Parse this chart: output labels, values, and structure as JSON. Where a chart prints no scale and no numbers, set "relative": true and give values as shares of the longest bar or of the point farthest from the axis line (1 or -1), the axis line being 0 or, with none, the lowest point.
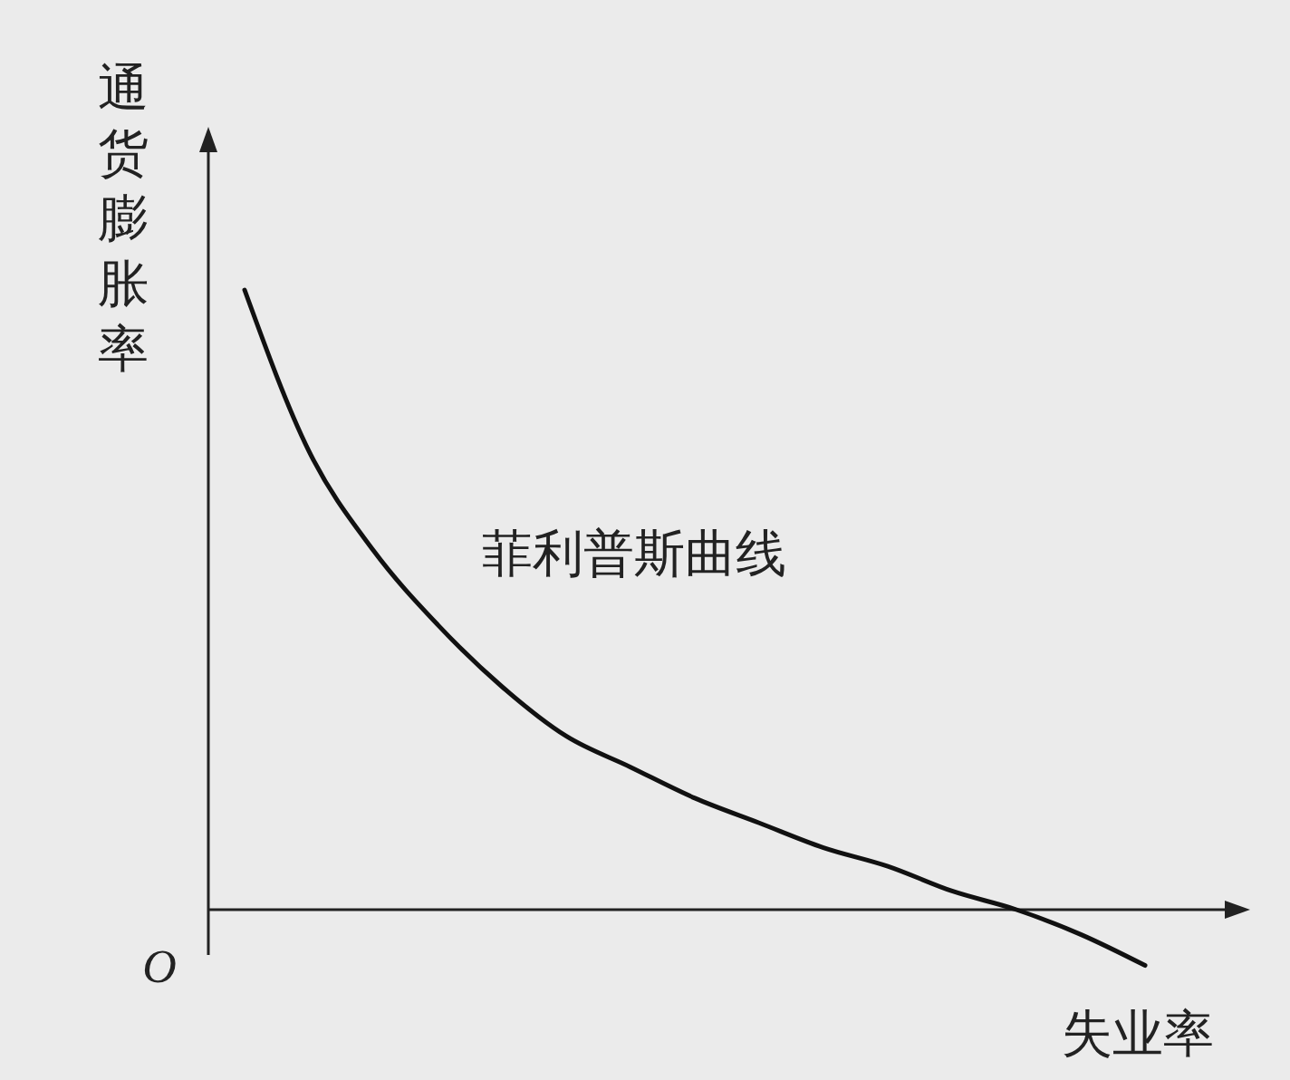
{
  "chart_data": {
    "type": "line",
    "relative": true,
    "xlabel": "失业率",
    "ylabel": "通货膨胀率",
    "categories": [
      null,
      null,
      null,
      null,
      null,
      null,
      null,
      null,
      null,
      null,
      null,
      null,
      null,
      null,
      null
    ],
    "series": [
      {
        "name": "菲利普斯曲线",
        "color": "#111111",
        "values": [
          1.0,
          0.74,
          0.58,
          0.46,
          0.36,
          0.28,
          0.23,
          0.18,
          0.14,
          0.1,
          0.07,
          0.03,
          0.0,
          -0.04,
          -0.09
        ]
      }
    ],
    "annotations": [
      "O"
    ],
    "marker": "none",
    "line_style": "solid"
  }
}
